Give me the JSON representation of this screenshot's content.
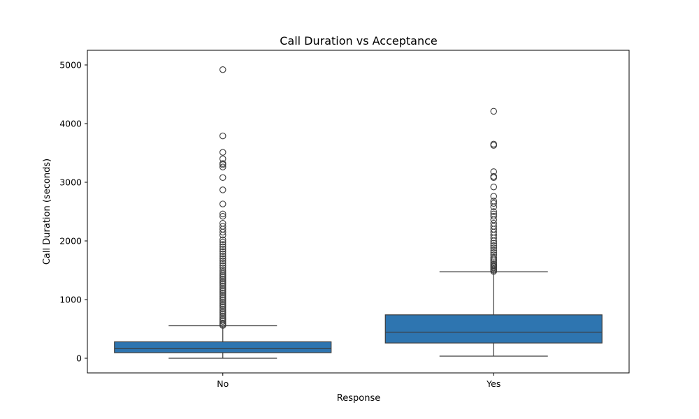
{
  "chart_data": {
    "type": "box",
    "title": "Call Duration vs Acceptance",
    "xlabel": "Response",
    "ylabel": "Call Duration (seconds)",
    "categories": [
      "No",
      "Yes"
    ],
    "ylim": [
      -250,
      5250
    ],
    "yticks": [
      0,
      1000,
      2000,
      3000,
      4000,
      5000
    ],
    "grid": false,
    "box_color": "#2e75b0",
    "line_color": "#3c3c3c",
    "boxes": [
      {
        "category": "No",
        "whisker_low": 0,
        "q1": 95,
        "median": 164,
        "q3": 280,
        "whisker_high": 554,
        "outliers": [
          560,
          580,
          600,
          630,
          660,
          690,
          720,
          750,
          780,
          810,
          840,
          870,
          900,
          930,
          960,
          990,
          1020,
          1050,
          1080,
          1110,
          1140,
          1170,
          1200,
          1230,
          1260,
          1290,
          1320,
          1350,
          1380,
          1410,
          1440,
          1470,
          1500,
          1540,
          1580,
          1620,
          1660,
          1700,
          1740,
          1780,
          1820,
          1860,
          1900,
          1940,
          1980,
          2020,
          2100,
          2150,
          2200,
          2250,
          2300,
          2420,
          2460,
          2630,
          2870,
          3080,
          3260,
          3300,
          3320,
          3400,
          3510,
          3790,
          4920
        ]
      },
      {
        "category": "Yes",
        "whisker_low": 36,
        "q1": 260,
        "median": 445,
        "q3": 740,
        "whisker_high": 1475,
        "outliers": [
          1480,
          1500,
          1520,
          1540,
          1560,
          1580,
          1600,
          1630,
          1660,
          1690,
          1720,
          1760,
          1800,
          1840,
          1880,
          1920,
          1960,
          2000,
          2050,
          2100,
          2150,
          2200,
          2250,
          2300,
          2360,
          2420,
          2460,
          2500,
          2580,
          2640,
          2680,
          2760,
          2920,
          3080,
          3100,
          3180,
          3630,
          3650,
          4210
        ]
      }
    ]
  }
}
